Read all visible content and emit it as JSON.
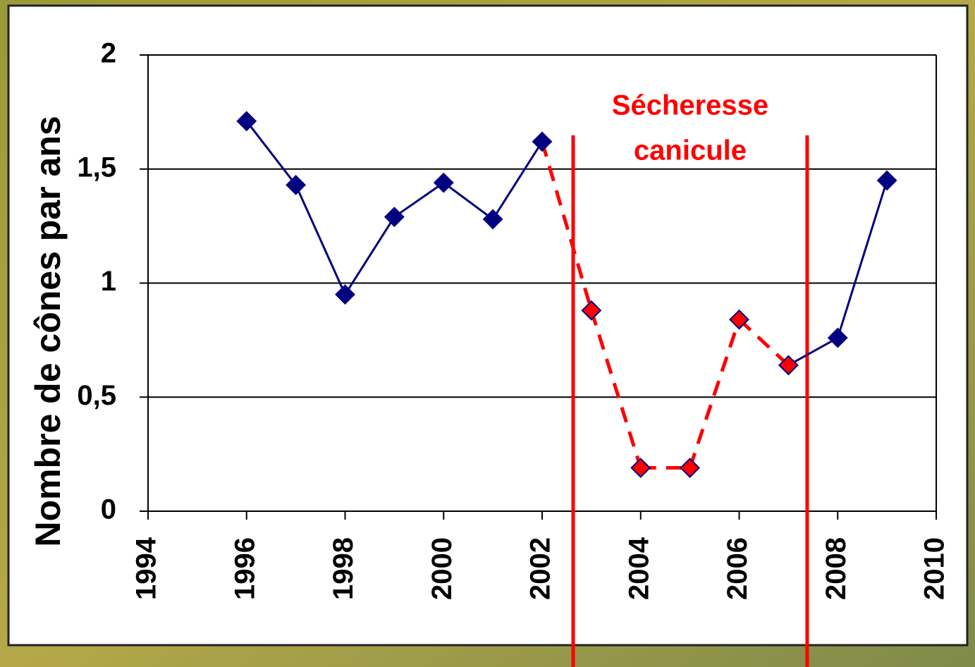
{
  "chart_data": {
    "type": "line",
    "y_label": "Nombre de cônes par ans",
    "x": [
      1996,
      1997,
      1998,
      1999,
      2000,
      2001,
      2002,
      2003,
      2004,
      2005,
      2006,
      2007,
      2008,
      2009
    ],
    "values": [
      1.71,
      1.43,
      0.95,
      1.29,
      1.44,
      1.28,
      1.62,
      0.88,
      0.19,
      0.19,
      0.84,
      0.64,
      0.76,
      1.45
    ],
    "color": "#000080",
    "highlight_color": "#ff0000",
    "highlight_x": [
      2003,
      2004,
      2005,
      2006,
      2007
    ],
    "xlim": [
      1994,
      2010
    ],
    "xticks": [
      1994,
      1996,
      1998,
      2000,
      2002,
      2004,
      2006,
      2008,
      2010
    ],
    "ylim": [
      0,
      2
    ],
    "yticks": [
      0,
      {
        "value": 0.5,
        "label": "0,5"
      },
      1,
      {
        "value": 1.5,
        "label": "1,5"
      },
      2
    ],
    "grid": true,
    "annotation": {
      "lines": [
        "Sécheresse",
        "canicule"
      ],
      "x_bounds": [
        2002.63,
        2007.38
      ],
      "color": "#ff0000"
    }
  }
}
